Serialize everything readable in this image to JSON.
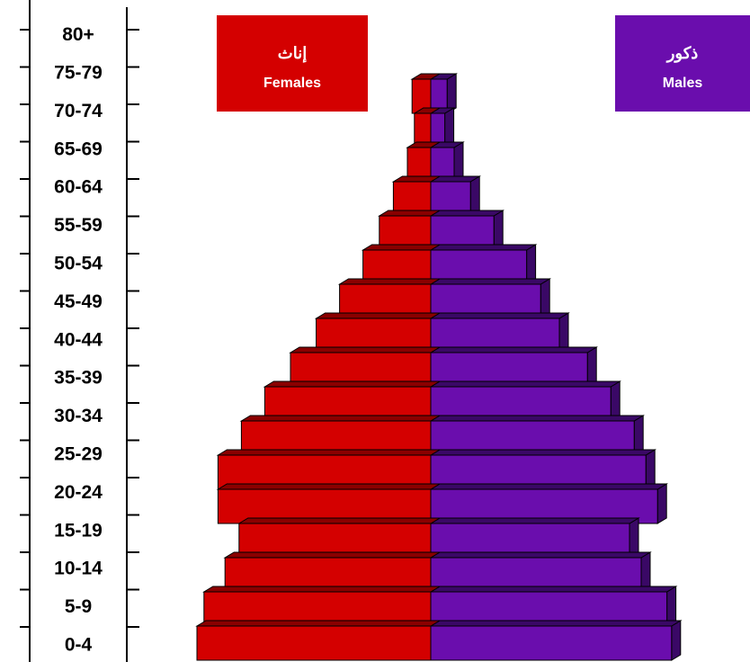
{
  "chart_data": {
    "type": "bar",
    "subtype": "population-pyramid",
    "categories": [
      "0-4",
      "5-9",
      "10-14",
      "15-19",
      "20-24",
      "25-29",
      "30-34",
      "35-39",
      "40-44",
      "45-49",
      "50-54",
      "55-59",
      "60-64",
      "65-69",
      "70-74",
      "75-79",
      "80+"
    ],
    "series": [
      {
        "name": "Females",
        "name_ar": "إناث",
        "color": "#d40000",
        "values": [
          100,
          97,
          88,
          82,
          91,
          91,
          81,
          71,
          60,
          49,
          39,
          29,
          22,
          16,
          10,
          7,
          8
        ]
      },
      {
        "name": "Males",
        "name_ar": "ذكور",
        "color": "#6a0dad",
        "values": [
          103,
          101,
          90,
          85,
          97,
          92,
          87,
          77,
          67,
          55,
          47,
          41,
          27,
          17,
          10,
          6,
          7
        ]
      }
    ],
    "side_colors": {
      "female": "#8a0000",
      "male": "#3a0866"
    },
    "legend_position": "top",
    "grid": false,
    "title": "",
    "xlabel": "",
    "ylabel": ""
  }
}
